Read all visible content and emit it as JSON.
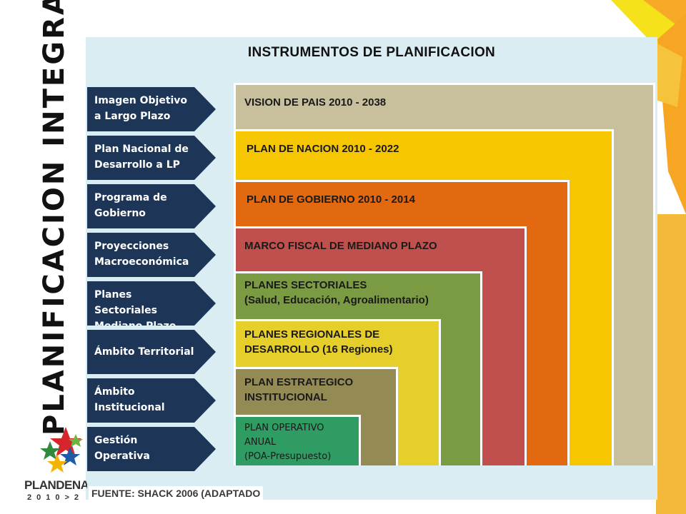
{
  "title": "INSTRUMENTOS DE PLANIFICACION",
  "side_title": "PLANIFICACION INTEGRAL",
  "source": "FUENTE: SHACK 2006 (ADAPTADO",
  "logo": {
    "text": "PLANDENAC",
    "sub": "2010>2"
  },
  "colors": {
    "panel": "#daedf3",
    "arrow": "#1d3557",
    "vision": "#c8bf9c",
    "nacion": "#f6c600",
    "gobierno": "#e2690f",
    "marco": "#c0504d",
    "sectoriales": "#7b9b42",
    "regionales": "#e6cf2a",
    "estrategico": "#948a54",
    "operativo": "#2e9c63"
  },
  "arrows": [
    {
      "line1": "Imagen Objetivo",
      "line2": "a Largo Plazo"
    },
    {
      "line1": "Plan Nacional de",
      "line2": "Desarrollo a LP"
    },
    {
      "line1": "Programa de",
      "line2": "Gobierno"
    },
    {
      "line1": "Proyecciones",
      "line2": "Macroeconómica"
    },
    {
      "line1": "Planes Sectoriales",
      "line2": "Mediano Plazo"
    },
    {
      "line1": "Ámbito Territorial",
      "line2": ""
    },
    {
      "line1": "Ámbito",
      "line2": "Institucional"
    },
    {
      "line1": "Gestión",
      "line2": "Operativa"
    }
  ],
  "boxes": {
    "vision": {
      "label": "VISION DE PAIS 2010 - 2038"
    },
    "nacion": {
      "label": "PLAN DE NACION 2010 - 2022"
    },
    "gobierno": {
      "label": "PLAN DE GOBIERNO 2010 - 2014"
    },
    "marco": {
      "label": "MARCO FISCAL DE MEDIANO PLAZO"
    },
    "sectoriales": {
      "line1": "PLANES SECTORIALES",
      "line2": "(Salud, Educación, Agroalimentario)"
    },
    "regionales": {
      "line1": "PLANES REGIONALES DE",
      "line2": "DESARROLLO (16 Regiones)"
    },
    "estrategico": {
      "line1": "PLAN ESTRATEGICO",
      "line2": "INSTITUCIONAL"
    },
    "operativo": {
      "line1": "PLAN OPERATIVO",
      "line2": "ANUAL",
      "line3": "(POA-Presupuesto)"
    }
  }
}
